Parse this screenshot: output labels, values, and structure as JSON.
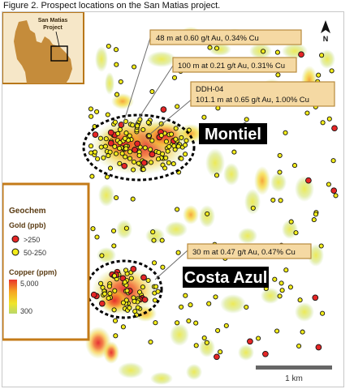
{
  "caption": "Figure 2. Prospect locations on the San Matias project.",
  "inset": {
    "label_line1": "San Matias",
    "label_line2": "Project",
    "colors": {
      "land": "#c58c3b",
      "sea": "#f6e7c8",
      "frame": "#b87719"
    }
  },
  "north_arrow": {
    "label": "N"
  },
  "callouts": [
    {
      "line1": "48 m at 0.60 g/t Au, 0.34% Cu",
      "line2": ""
    },
    {
      "line1": "100 m at 0.21 g/t Au, 0.31% Cu",
      "line2": ""
    },
    {
      "line1": "DDH-04",
      "line2": "101.1 m at 0.65 g/t Au, 1.00% Cu"
    },
    {
      "line1": "30 m at 0.47 g/t Au, 0.47% Cu",
      "line2": ""
    }
  ],
  "prospects": [
    {
      "name": "Montiel"
    },
    {
      "name": "Costa Azul"
    }
  ],
  "legend": {
    "title": "Geochem",
    "gold_title": "Gold (ppb)",
    "gold_high": ">250",
    "gold_mid": "50-250",
    "copper_title": "Copper (ppm)",
    "copper_max": "5,000",
    "copper_min": "300",
    "colors": {
      "gold_high": "#e62626",
      "gold_mid": "#f3ec1a",
      "border": "#c47b18",
      "ramp_top": "#e8332c",
      "ramp_mid": "#f6a523",
      "ramp_low": "#f0e42a",
      "ramp_bottom": "#b9d86a"
    }
  },
  "scale_bar": {
    "label": "1 km"
  },
  "colors": {
    "callout_fill": "#f5d9a3",
    "callout_border": "#b88a3d",
    "prospect_label_bg": "#000000",
    "prospect_label_text": "#ffffff"
  }
}
